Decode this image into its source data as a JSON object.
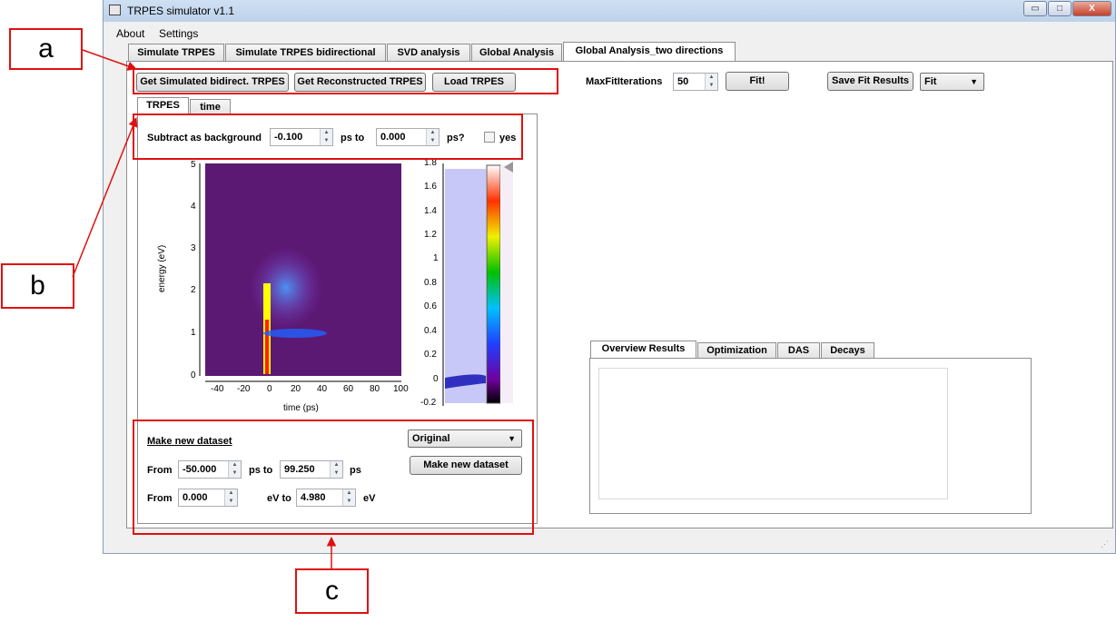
{
  "window": {
    "title": "TRPES simulator v1.1",
    "min": "▭",
    "max": "□",
    "close": "X"
  },
  "menu": [
    "About",
    "Settings"
  ],
  "tabs": [
    "Simulate TRPES",
    "Simulate TRPES bidirectional",
    "SVD analysis",
    "Global Analysis",
    "Global Analysis_two directions"
  ],
  "toolbar": {
    "btn_sim": "Get Simulated bidirect. TRPES",
    "btn_recon": "Get Reconstructed TRPES",
    "btn_load": "Load TRPES",
    "maxfit_label": "MaxFitIterations",
    "maxfit_value": "50",
    "fit_btn": "Fit!",
    "save_btn": "Save Fit Results",
    "fit_combo": "Fit"
  },
  "subtabs": [
    "TRPES",
    "time"
  ],
  "background": {
    "label": "Subtract as background",
    "from": "-0.100",
    "ps_to": "ps to",
    "to": "0.000",
    "ps_q": "ps?",
    "yes": "yes"
  },
  "plot": {
    "ylabel": "energy (eV)",
    "xlabel": "time (ps)",
    "xticks": [
      "-40",
      "-20",
      "0",
      "20",
      "40",
      "60",
      "80",
      "100"
    ],
    "yticks": [
      "5",
      "4",
      "3",
      "2",
      "1",
      "0"
    ],
    "hist_ticks": [
      "1.8",
      "1.6",
      "1.4",
      "1.2",
      "1",
      "0.8",
      "0.6",
      "0.4",
      "0.2",
      "0",
      "-0.2"
    ]
  },
  "dataset": {
    "title": "Make new dataset",
    "combo": "Original",
    "btn": "Make new dataset",
    "from_label": "From",
    "from_ps": "-50.000",
    "ps_to": "ps to",
    "to_ps": "99.250",
    "ps": "ps",
    "from_label2": "From",
    "from_ev": "0.000",
    "ev_to": "eV to",
    "to_ev": "4.980",
    "ev": "eV"
  },
  "results_tabs": [
    "Overview Results",
    "Optimization",
    "DAS",
    "Decays"
  ],
  "callouts": {
    "a": "a",
    "b": "b",
    "c": "c"
  },
  "colors": {
    "accent": "#e01010"
  }
}
